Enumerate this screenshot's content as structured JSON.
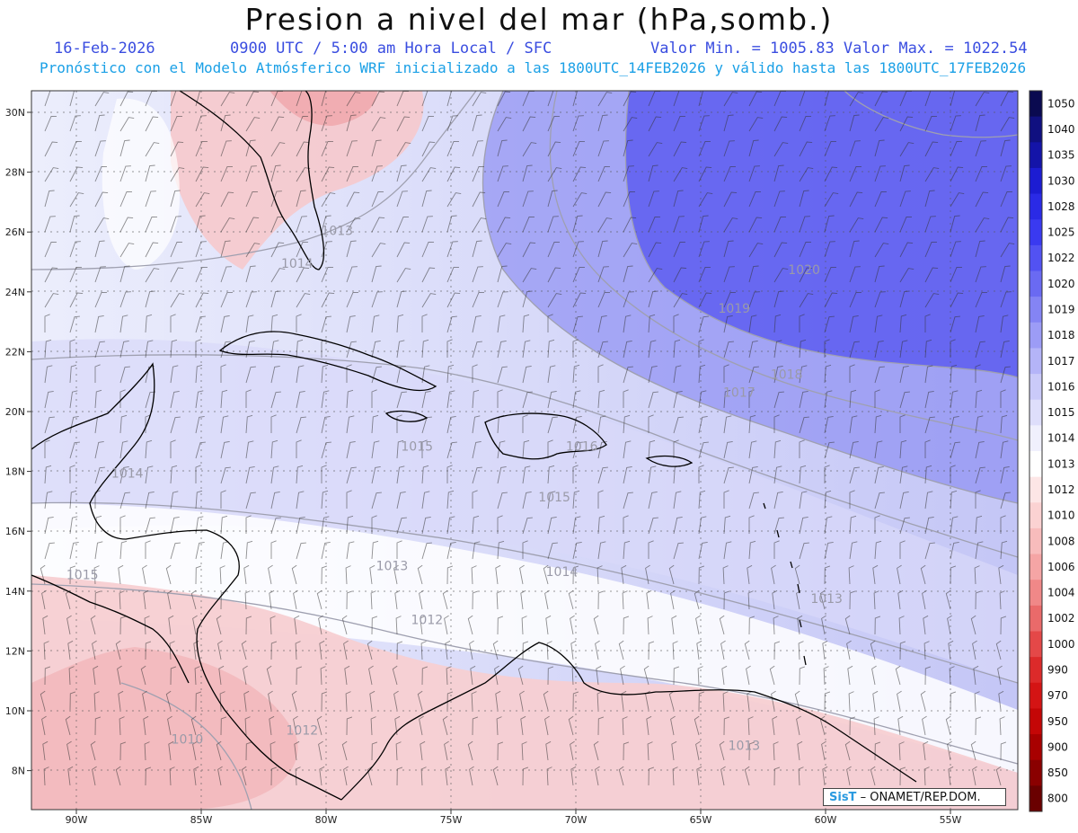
{
  "header": {
    "title": "Presion a nivel del mar (hPa,somb.)",
    "date": "16-Feb-2026",
    "time": "0900 UTC / 5:00 am Hora Local / SFC",
    "min_max": "Valor Min. = 1005.83  Valor Max. = 1022.54",
    "model_line": "Pronóstico con el Modelo Atmósferico WRF inicializado a las 1800UTC_14FEB2026 y válido hasta las  1800UTC_17FEB2026"
  },
  "axes": {
    "lat_ticks": [
      "30N",
      "28N",
      "26N",
      "24N",
      "22N",
      "20N",
      "18N",
      "16N",
      "14N",
      "12N",
      "10N",
      "8N"
    ],
    "lon_ticks": [
      "90W",
      "85W",
      "80W",
      "75W",
      "70W",
      "65W",
      "60W",
      "55W"
    ]
  },
  "contour_labels": [
    {
      "text": "1013",
      "lon": -80.2,
      "lat": 25.9
    },
    {
      "text": "1014",
      "lon": -81.8,
      "lat": 24.8
    },
    {
      "text": "1020",
      "lon": -61.5,
      "lat": 24.6
    },
    {
      "text": "1019",
      "lon": -64.3,
      "lat": 23.3
    },
    {
      "text": "1018",
      "lon": -62.2,
      "lat": 21.1
    },
    {
      "text": "1017",
      "lon": -64.1,
      "lat": 20.5
    },
    {
      "text": "1016",
      "lon": -70.4,
      "lat": 18.7
    },
    {
      "text": "1015",
      "lon": -77.0,
      "lat": 18.7
    },
    {
      "text": "1015",
      "lon": -71.5,
      "lat": 17.0
    },
    {
      "text": "1014",
      "lon": -88.6,
      "lat": 17.8
    },
    {
      "text": "1015",
      "lon": -90.4,
      "lat": 14.4
    },
    {
      "text": "1013",
      "lon": -78.0,
      "lat": 14.7
    },
    {
      "text": "1014",
      "lon": -71.2,
      "lat": 14.5
    },
    {
      "text": "1012",
      "lon": -76.6,
      "lat": 12.9
    },
    {
      "text": "1013",
      "lon": -60.6,
      "lat": 13.6
    },
    {
      "text": "1012",
      "lon": -81.6,
      "lat": 9.2
    },
    {
      "text": "1010",
      "lon": -86.2,
      "lat": 8.9
    },
    {
      "text": "1013",
      "lon": -63.9,
      "lat": 8.7
    }
  ],
  "colorbar": {
    "levels": [
      "1050",
      "1040",
      "1035",
      "1030",
      "1028",
      "1025",
      "1022",
      "1020",
      "1019",
      "1018",
      "1017",
      "1016",
      "1015",
      "1014",
      "1013",
      "1012",
      "1010",
      "1008",
      "1006",
      "1004",
      "1002",
      "1000",
      "990",
      "970",
      "950",
      "900",
      "850",
      "800"
    ],
    "colors": [
      "#0a0a50",
      "#101080",
      "#1414a8",
      "#1c1cd2",
      "#2a2ae6",
      "#3a3af0",
      "#5252f2",
      "#6a6af2",
      "#8484f4",
      "#9c9cf6",
      "#b4b4f8",
      "#cacaf9",
      "#dedefb",
      "#f0f0fd",
      "#ffffff",
      "#fde6e6",
      "#fbd2d2",
      "#f8bcbc",
      "#f5a5a5",
      "#f08888",
      "#ea6a6a",
      "#e44848",
      "#dc2a2a",
      "#d41414",
      "#c40606",
      "#a80000",
      "#8a0000",
      "#6a0000"
    ]
  },
  "credit": {
    "logo": "SisT",
    "text": "– ONAMET/REP.DOM."
  }
}
